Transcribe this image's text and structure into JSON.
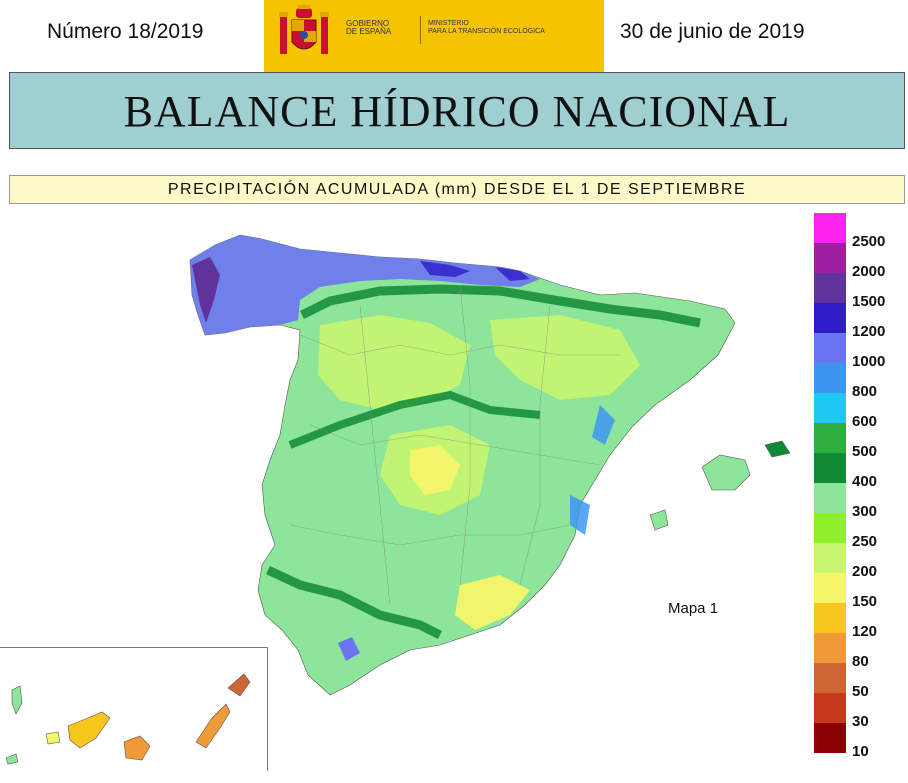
{
  "header": {
    "issue": "Número 18/2019",
    "date": "30 de junio de 2019",
    "gov_line1": "GOBIERNO",
    "gov_line2": "DE ESPAÑA",
    "ministry_line1": "MINISTERIO",
    "ministry_line2": "PARA LA TRANSICIÓN ECOLÓGICA",
    "band_color": "#f5c400"
  },
  "title": "BALANCE HÍDRICO NACIONAL",
  "subtitle": "PRECIPITACIÓN ACUMULADA (mm) DESDE EL 1 DE SEPTIEMBRE",
  "map_label": "Mapa 1",
  "legend": [
    {
      "label": "2500",
      "color": "#ff22ee"
    },
    {
      "label": "2000",
      "color": "#9b1f9e"
    },
    {
      "label": "1500",
      "color": "#60339c"
    },
    {
      "label": "1200",
      "color": "#2d1cc8"
    },
    {
      "label": "1000",
      "color": "#6b74f2"
    },
    {
      "label": "800",
      "color": "#3c96f0"
    },
    {
      "label": "600",
      "color": "#1ec8f0"
    },
    {
      "label": "500",
      "color": "#2db040"
    },
    {
      "label": "400",
      "color": "#118a36"
    },
    {
      "label": "300",
      "color": "#8de59a"
    },
    {
      "label": "250",
      "color": "#8ef02a"
    },
    {
      "label": "200",
      "color": "#c8f570"
    },
    {
      "label": "150",
      "color": "#f5f569"
    },
    {
      "label": "120",
      "color": "#f6c61c"
    },
    {
      "label": "80",
      "color": "#f09a3a"
    },
    {
      "label": "50",
      "color": "#cc6633"
    },
    {
      "label": "30",
      "color": "#c8381a"
    },
    {
      "label": "10",
      "color": "#8b0000"
    }
  ]
}
